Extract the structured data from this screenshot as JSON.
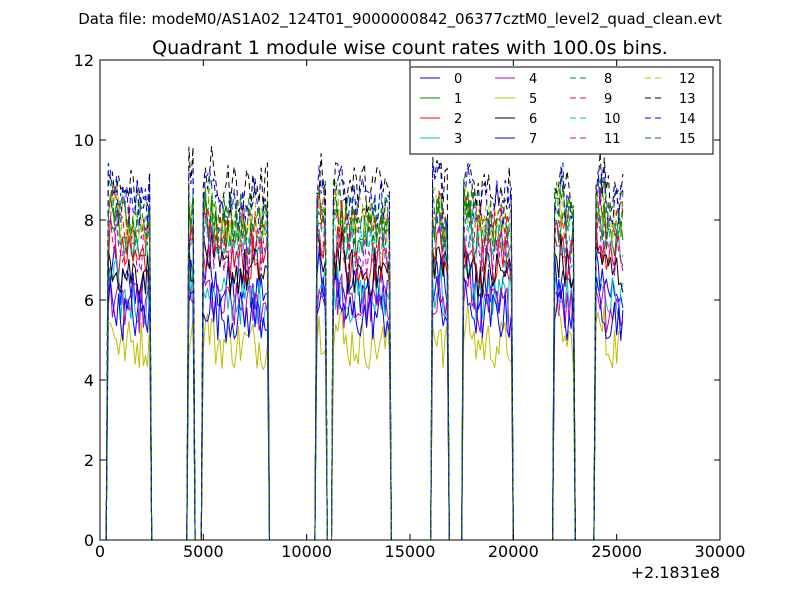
{
  "header": {
    "data_file": "Data file: modeM0/AS1A02_124T01_9000000842_06377cztM0_level2_quad_clean.evt"
  },
  "chart_data": {
    "type": "line",
    "title": "Quadrant 1 module wise count rates with 100.0s bins.",
    "xlabel": "",
    "ylabel": "",
    "xlim": [
      0,
      30000
    ],
    "ylim": [
      0,
      12
    ],
    "x_offset_label": "+2.1831e8",
    "xticks": [
      0,
      5000,
      10000,
      15000,
      20000,
      25000,
      30000
    ],
    "xtick_labels": [
      "0",
      "5000",
      "10000",
      "15000",
      "20000",
      "25000",
      "30000"
    ],
    "yticks": [
      0,
      2,
      4,
      6,
      8,
      10,
      12
    ],
    "ytick_labels": [
      "0",
      "2",
      "4",
      "6",
      "8",
      "10",
      "12"
    ],
    "grid": false,
    "legend_position": "top-right",
    "bin_width": 100,
    "gti_segments": [
      [
        400,
        2400
      ],
      [
        4300,
        4500
      ],
      [
        5000,
        8100
      ],
      [
        10500,
        10900
      ],
      [
        11300,
        14000
      ],
      [
        16100,
        16800
      ],
      [
        17600,
        19900
      ],
      [
        22000,
        22900
      ],
      [
        24000,
        25300
      ]
    ],
    "series": [
      {
        "name": "0",
        "color": "#0000ff",
        "dash": "solid",
        "level": 6.3
      },
      {
        "name": "1",
        "color": "#008000",
        "dash": "solid",
        "level": 7.6
      },
      {
        "name": "2",
        "color": "#ff0000",
        "dash": "solid",
        "level": 7.0
      },
      {
        "name": "3",
        "color": "#00bfbf",
        "dash": "solid",
        "level": 6.0
      },
      {
        "name": "4",
        "color": "#bf00bf",
        "dash": "solid",
        "level": 5.8
      },
      {
        "name": "5",
        "color": "#bfbf00",
        "dash": "solid",
        "level": 4.9
      },
      {
        "name": "6",
        "color": "#000000",
        "dash": "solid",
        "level": 6.7
      },
      {
        "name": "7",
        "color": "#0000ff",
        "dash": "solid",
        "level": 5.6
      },
      {
        "name": "8",
        "color": "#008000",
        "dash": "dashed",
        "level": 8.1
      },
      {
        "name": "9",
        "color": "#ff0000",
        "dash": "dashed",
        "level": 7.8
      },
      {
        "name": "10",
        "color": "#00bfbf",
        "dash": "dashed",
        "level": 7.4
      },
      {
        "name": "11",
        "color": "#bf00bf",
        "dash": "dashed",
        "level": 7.2
      },
      {
        "name": "12",
        "color": "#bfbf00",
        "dash": "dashed",
        "level": 8.0
      },
      {
        "name": "13",
        "color": "#000000",
        "dash": "dashed",
        "level": 8.8
      },
      {
        "name": "14",
        "color": "#0000ff",
        "dash": "dashed",
        "level": 8.4
      },
      {
        "name": "15",
        "color": "#008000",
        "dash": "dashed",
        "level": 7.9
      }
    ]
  }
}
